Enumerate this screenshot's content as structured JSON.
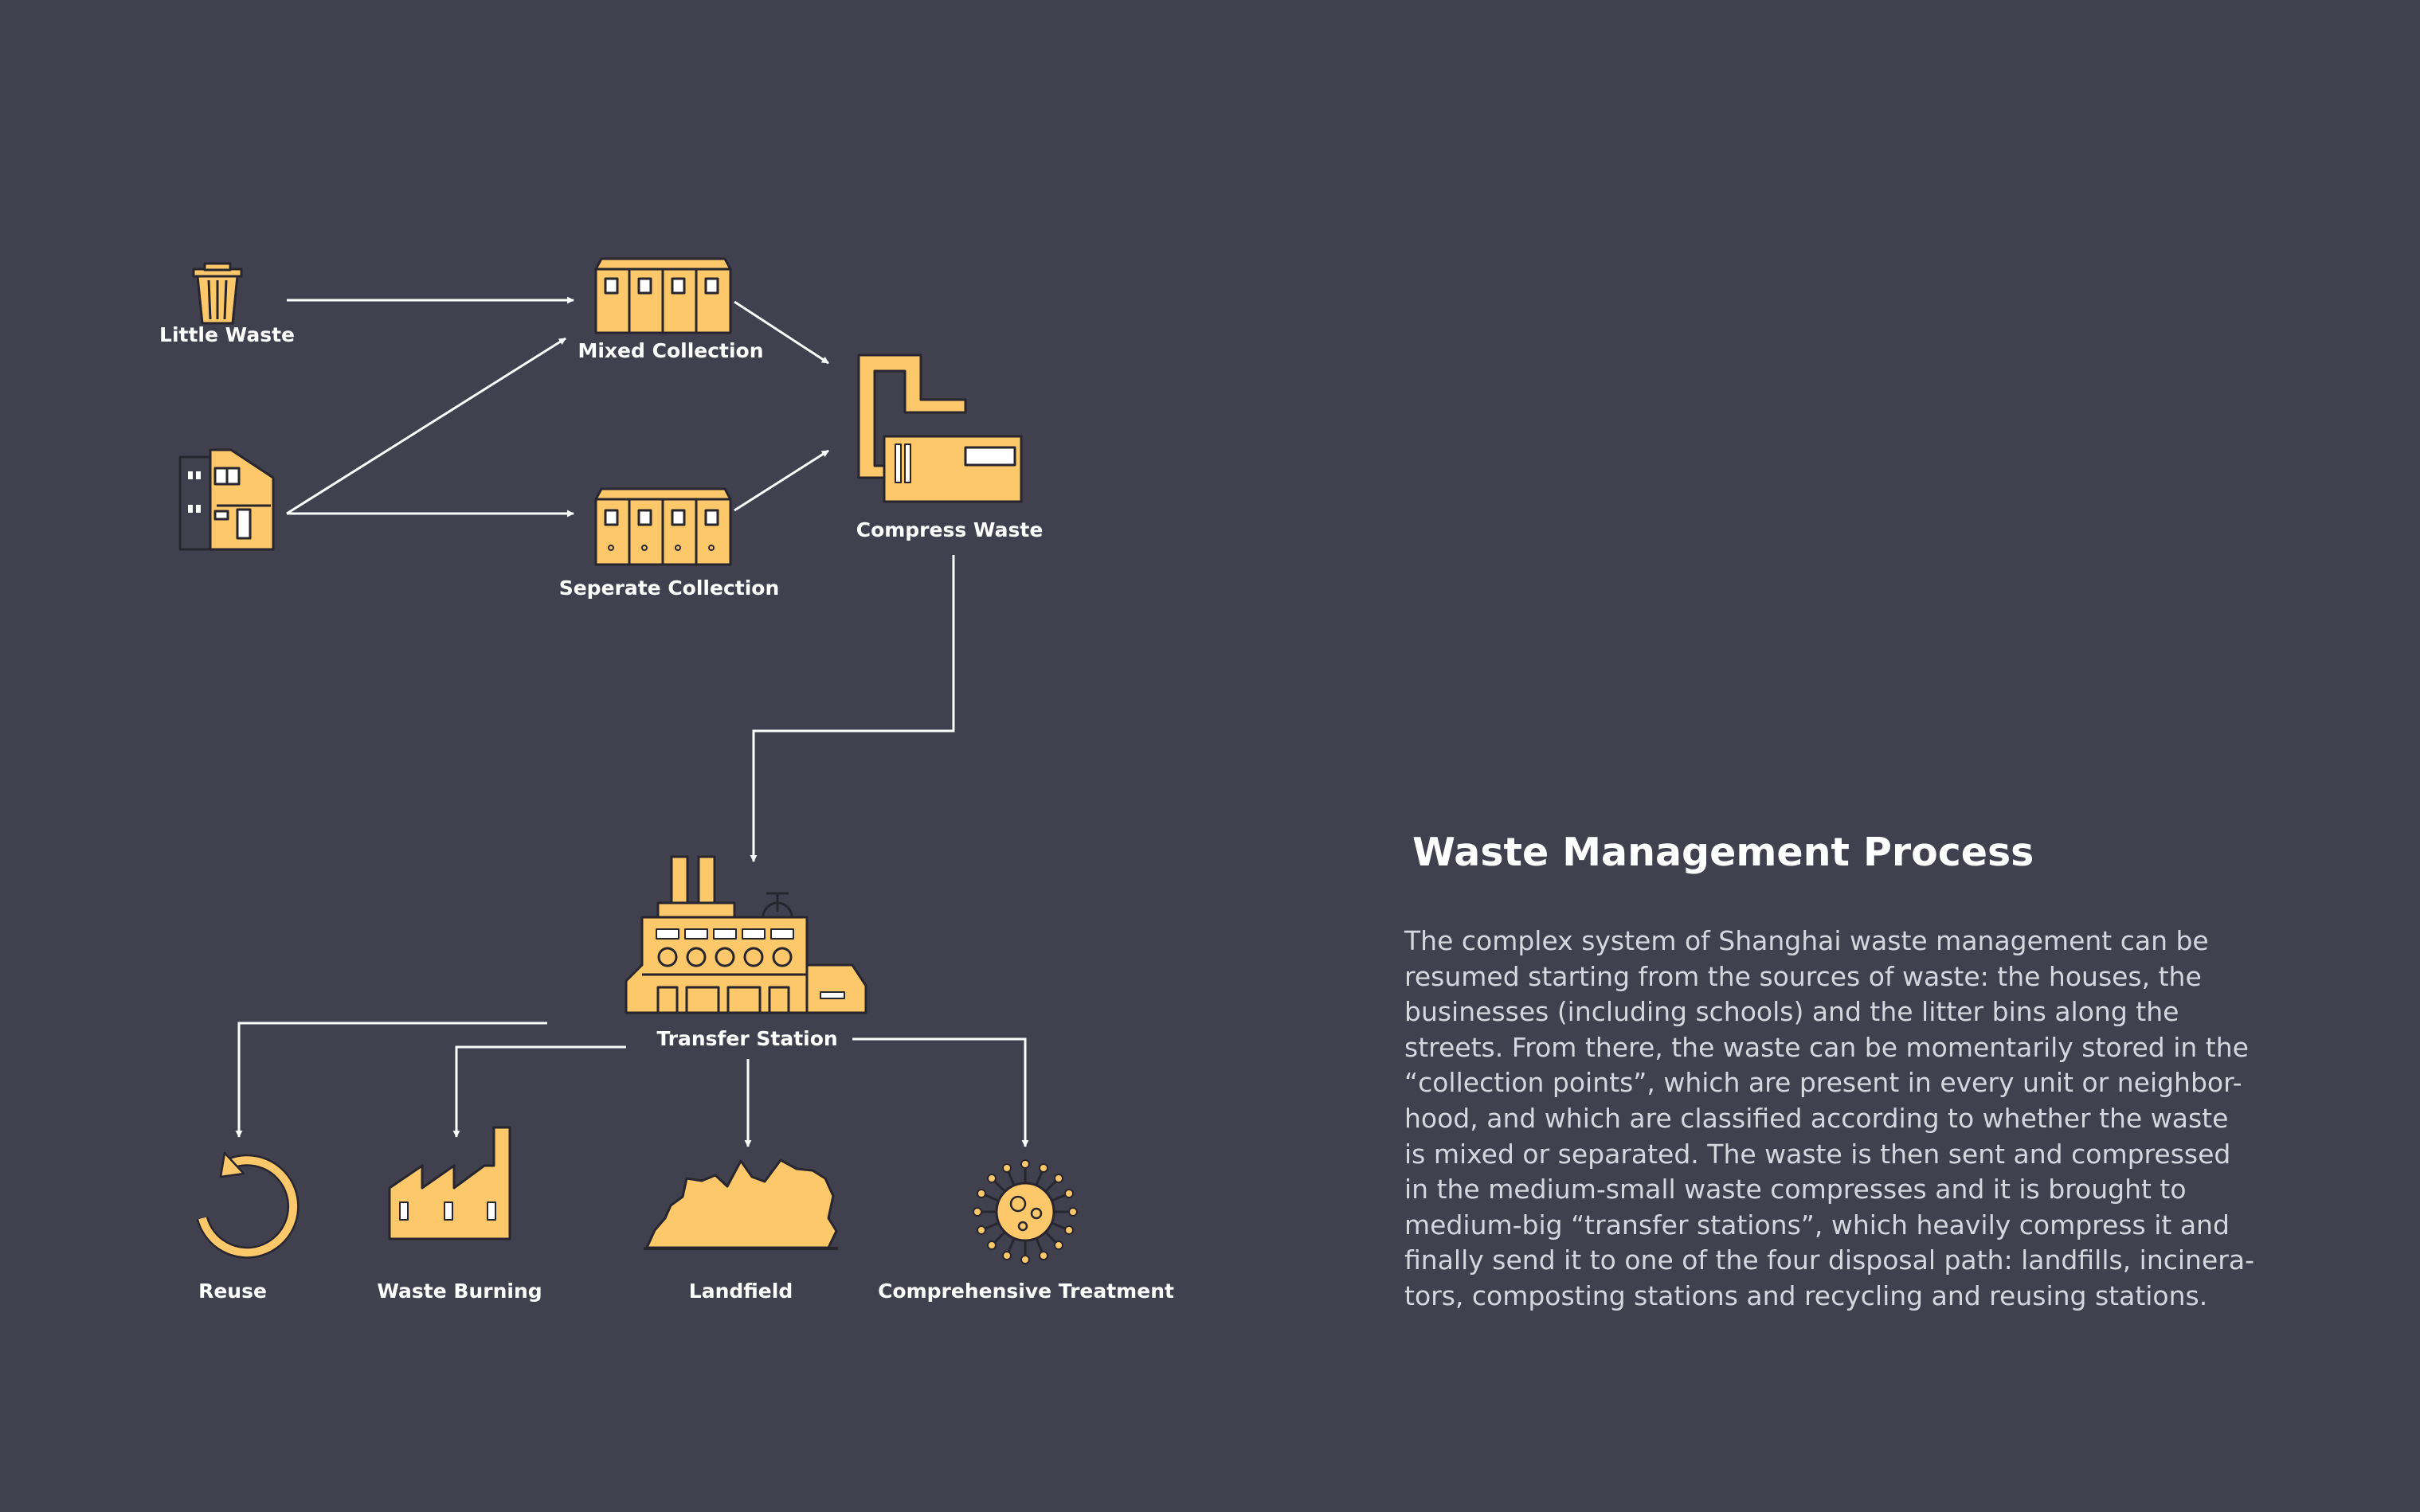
{
  "nodes": {
    "little_waste": "Little Waste",
    "mixed_collection": "Mixed Collection",
    "separate_collection": "Seperate Collection",
    "compress_waste": "Compress Waste",
    "transfer_station": "Transfer Station",
    "reuse": "Reuse",
    "waste_burning": "Waste Burning",
    "landfield": "Landfield",
    "comprehensive_treatment": "Comprehensive Treatment"
  },
  "panel": {
    "title": "Waste Management Process",
    "lines": [
      "The complex system of Shanghai waste management can be",
      "resumed starting from the sources of waste: the houses, the",
      "businesses (including schools) and the litter bins along the",
      "streets. From there, the waste can be momentarily stored in the",
      "“collection points”, which are present in every unit or neighbor-",
      "hood, and which are classified according to whether the waste",
      "is mixed or separated. The waste is then sent and compressed",
      "in the medium-small waste compresses and it is brought to",
      "medium-big “transfer stations”, which heavily compress it and",
      "finally send it to one of the four disposal path: landfills, incinera-",
      "tors, composting stations and recycling and reusing stations."
    ]
  },
  "colors": {
    "background": "#41404f",
    "icon_fill": "#fdc86a",
    "icon_stroke": "#27262f",
    "line": "#ffffff"
  },
  "icons": [
    "trash-bin-icon",
    "house-icon",
    "container-icon",
    "compressor-icon",
    "factory-icon",
    "recycle-arrow-icon",
    "incinerator-icon",
    "landfill-icon",
    "virus-treatment-icon"
  ]
}
